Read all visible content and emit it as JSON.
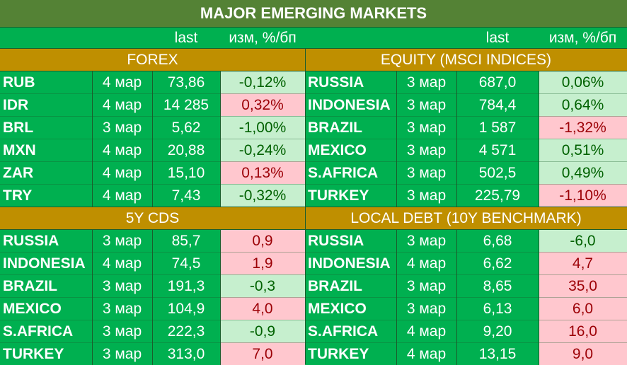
{
  "title": "MAJOR   EMERGING MARKETS",
  "column_headers": {
    "left_last": "last",
    "left_change": "изм, %/бп",
    "right_last": "last",
    "right_change": "изм, %/бп"
  },
  "sections": {
    "forex": {
      "title": "FOREX",
      "rows": [
        {
          "name": "RUB",
          "date": "4 мар",
          "last": "73,86",
          "change": "-0,12%",
          "tone": "pos"
        },
        {
          "name": "IDR",
          "date": "4 мар",
          "last": "14 285",
          "change": "0,32%",
          "tone": "neg"
        },
        {
          "name": "BRL",
          "date": "3 мар",
          "last": "5,62",
          "change": "-1,00%",
          "tone": "pos"
        },
        {
          "name": "MXN",
          "date": "4 мар",
          "last": "20,88",
          "change": "-0,24%",
          "tone": "pos"
        },
        {
          "name": "ZAR",
          "date": "4 мар",
          "last": "15,10",
          "change": "0,13%",
          "tone": "neg"
        },
        {
          "name": "TRY",
          "date": "4 мар",
          "last": "7,43",
          "change": "-0,32%",
          "tone": "pos"
        }
      ]
    },
    "equity": {
      "title": "EQUITY (MSCI INDICES)",
      "rows": [
        {
          "name": "RUSSIA",
          "date": "3 мар",
          "last": "687,0",
          "change": "0,06%",
          "tone": "pos"
        },
        {
          "name": "INDONESIA",
          "date": "3 мар",
          "last": "784,4",
          "change": "0,64%",
          "tone": "pos"
        },
        {
          "name": "BRAZIL",
          "date": "3 мар",
          "last": "1 587",
          "change": "-1,32%",
          "tone": "neg"
        },
        {
          "name": "MEXICO",
          "date": "3 мар",
          "last": "4 571",
          "change": "0,51%",
          "tone": "pos"
        },
        {
          "name": "S.AFRICA",
          "date": "3 мар",
          "last": "502,5",
          "change": "0,49%",
          "tone": "pos"
        },
        {
          "name": "TURKEY",
          "date": "3 мар",
          "last": "225,79",
          "change": "-1,10%",
          "tone": "neg"
        }
      ]
    },
    "cds": {
      "title": "5Y CDS",
      "rows": [
        {
          "name": "RUSSIA",
          "date": "3 мар",
          "last": "85,7",
          "change": "0,9",
          "tone": "neg"
        },
        {
          "name": "INDONESIA",
          "date": "4 мар",
          "last": "74,5",
          "change": "1,9",
          "tone": "neg"
        },
        {
          "name": "BRAZIL",
          "date": "3 мар",
          "last": "191,3",
          "change": "-0,3",
          "tone": "pos"
        },
        {
          "name": "MEXICO",
          "date": "3 мар",
          "last": "104,9",
          "change": "4,0",
          "tone": "neg"
        },
        {
          "name": "S.AFRICA",
          "date": "3 мар",
          "last": "222,3",
          "change": "-0,9",
          "tone": "pos"
        },
        {
          "name": "TURKEY",
          "date": "3 мар",
          "last": "313,0",
          "change": "7,0",
          "tone": "neg"
        }
      ]
    },
    "local_debt": {
      "title": "LOCAL DEBT (10Y BENCHMARK)",
      "rows": [
        {
          "name": "RUSSIA",
          "date": "3 мар",
          "last": "6,68",
          "change": "-6,0",
          "tone": "pos"
        },
        {
          "name": "INDONESIA",
          "date": "4 мар",
          "last": "6,62",
          "change": "4,7",
          "tone": "neg"
        },
        {
          "name": "BRAZIL",
          "date": "3 мар",
          "last": "8,65",
          "change": "35,0",
          "tone": "neg"
        },
        {
          "name": "MEXICO",
          "date": "3 мар",
          "last": "6,13",
          "change": "6,0",
          "tone": "neg"
        },
        {
          "name": "S.AFRICA",
          "date": "4 мар",
          "last": "9,20",
          "change": "16,0",
          "tone": "neg"
        },
        {
          "name": "TURKEY",
          "date": "4 мар",
          "last": "13,15",
          "change": "9,0",
          "tone": "neg"
        }
      ]
    }
  },
  "colors": {
    "title_bg": "#548235",
    "row_bg": "#00b050",
    "section_header_bg": "#bf8f00",
    "positive_bg": "#c6efce",
    "positive_text": "#006100",
    "negative_bg": "#ffc7ce",
    "negative_text": "#9c0006"
  }
}
